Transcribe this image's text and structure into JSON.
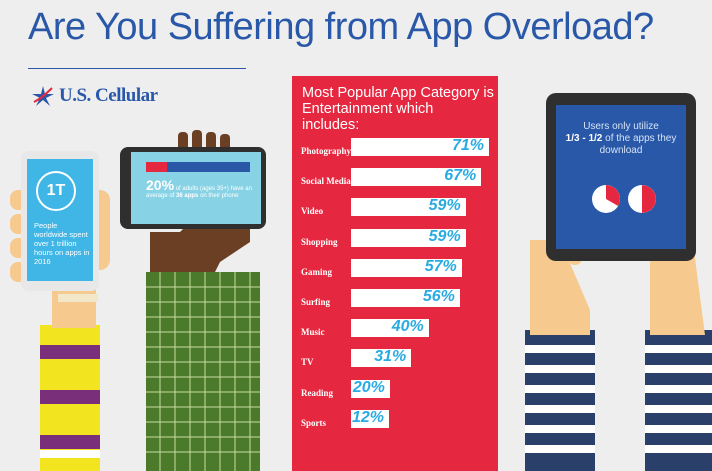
{
  "header": {
    "title": "Are You Suffering from App Overload?",
    "logo_text": "U.S. Cellular"
  },
  "left_phone": {
    "badge": "1T",
    "text": "People worldwide spent over 1 trillion hours on apps in 2016"
  },
  "middle_phone": {
    "percent": "20%",
    "text_before": "of adults (ages 35+) have an average of",
    "highlight": "36 apps",
    "text_after": "on their phone",
    "progress_fraction": 0.2
  },
  "right_phone": {
    "line1": "Users only utilize",
    "highlight": "1/3 - 1/2",
    "line2": "of the apps they download",
    "pie_fractions": [
      0.333,
      0.5
    ]
  },
  "chart_data": {
    "type": "bar",
    "title": "Most Popular App Category is Entertainment which includes:",
    "categories": [
      "Photography",
      "Social Media",
      "Video",
      "Shopping",
      "Gaming",
      "Surfing",
      "Music",
      "TV",
      "Reading",
      "Sports"
    ],
    "values": [
      71,
      67,
      59,
      59,
      57,
      56,
      40,
      31,
      20,
      12
    ],
    "labels": [
      "71%",
      "67%",
      "59%",
      "59%",
      "57%",
      "56%",
      "40%",
      "31%",
      "20%",
      "12%"
    ],
    "unit": "%",
    "orientation": "horizontal"
  },
  "colors": {
    "brand_blue": "#2a58a8",
    "panel_red": "#e5283f",
    "value_cyan": "#29abe2",
    "screen_cyan": "#3fb6e6"
  }
}
